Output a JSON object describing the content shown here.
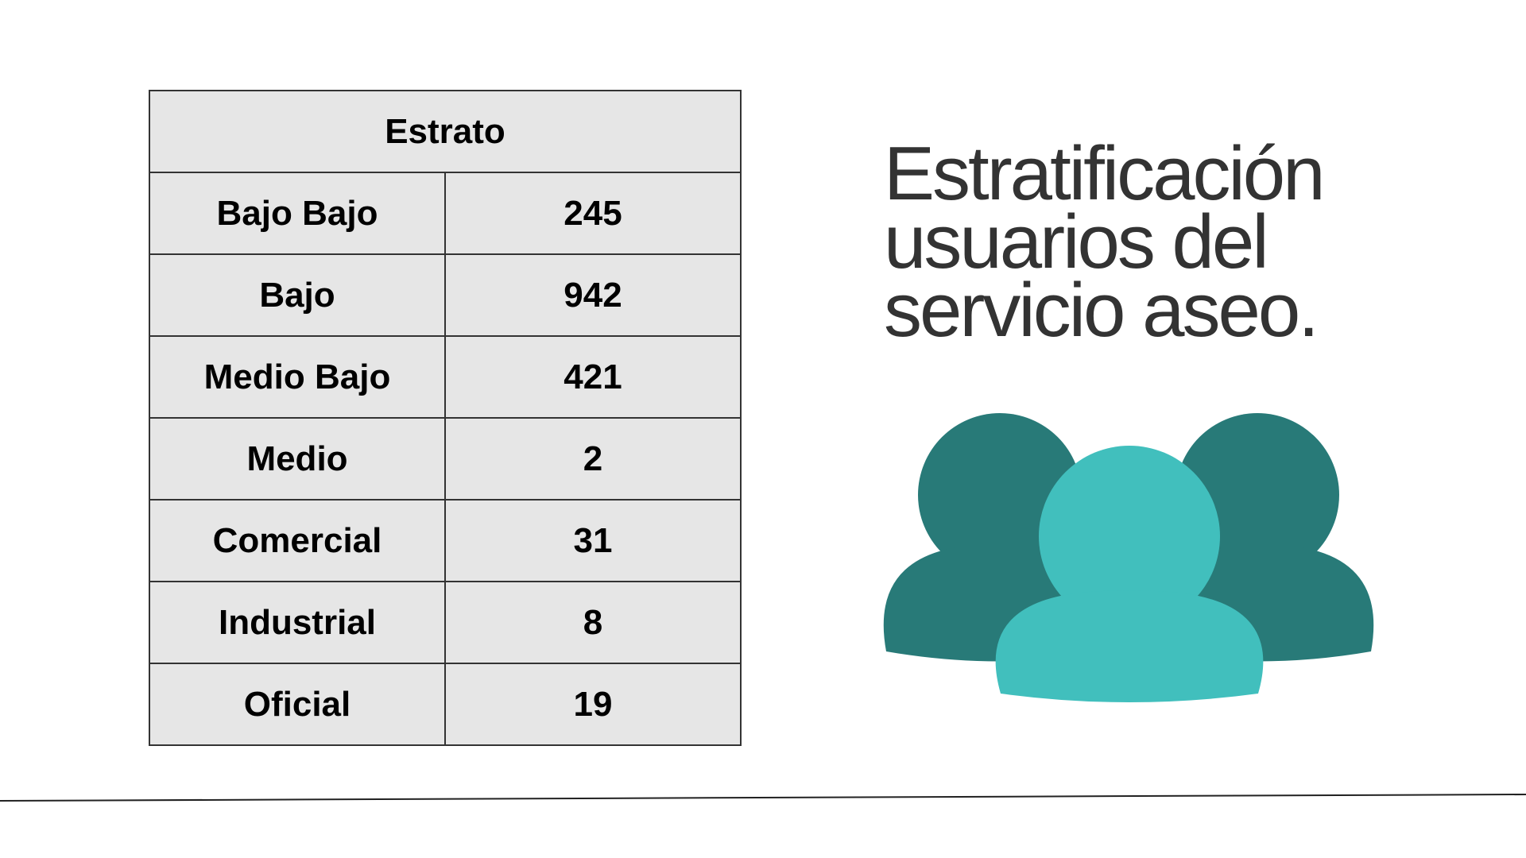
{
  "table": {
    "header": "Estrato",
    "rows": [
      {
        "label": "Bajo Bajo",
        "value": "245"
      },
      {
        "label": "Bajo",
        "value": "942"
      },
      {
        "label": "Medio Bajo",
        "value": "421"
      },
      {
        "label": "Medio",
        "value": "2"
      },
      {
        "label": "Comercial",
        "value": "31"
      },
      {
        "label": "Industrial",
        "value": "8"
      },
      {
        "label": "Oficial",
        "value": "19"
      }
    ]
  },
  "title": {
    "line1": "Estratificación",
    "line2": "usuarios del",
    "line3": "servicio aseo."
  },
  "illustration": {
    "icon": "users-group-icon",
    "colors": {
      "back": "#287a78",
      "front": "#41bfbd"
    }
  },
  "colors": {
    "cell_bg": "#e6e6e6",
    "border": "#333333",
    "title_text": "#333333"
  }
}
